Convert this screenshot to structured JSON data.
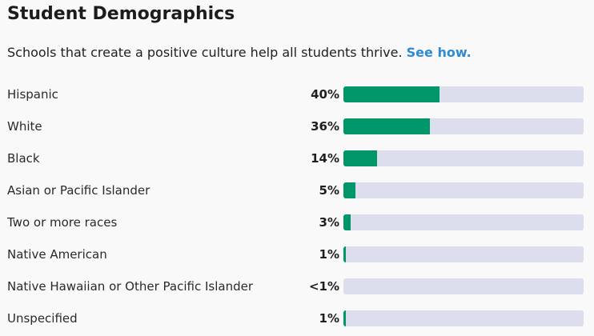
{
  "title": "Student Demographics",
  "subtitle": {
    "text": "Schools that create a positive culture help all students thrive. ",
    "link": "See how."
  },
  "colors": {
    "fill": "#009669",
    "track": "#dcdeee",
    "link": "#2d8bd1"
  },
  "chart_data": {
    "type": "bar",
    "orientation": "horizontal",
    "ylim": [
      0,
      100
    ],
    "categories": [
      "Hispanic",
      "White",
      "Black",
      "Asian or Pacific Islander",
      "Two or more races",
      "Native American",
      "Native Hawaiian or Other Pacific Islander",
      "Unspecified"
    ],
    "values": [
      40,
      36,
      14,
      5,
      3,
      1,
      0,
      1
    ],
    "data_labels": [
      "40%",
      "36%",
      "14%",
      "5%",
      "3%",
      "1%",
      "<1%",
      "1%"
    ]
  }
}
